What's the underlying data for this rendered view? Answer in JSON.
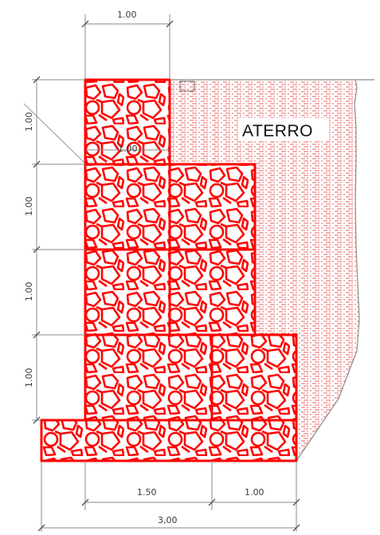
{
  "drawing": {
    "fill_label": "ATERRO",
    "dim_top_width": "1.00",
    "dim_level_1": "1.00",
    "dim_level_2": "1.00",
    "dim_level_3": "1.00",
    "dim_level_4": "1.00",
    "dim_inner": "1.00",
    "dim_bottom_left": "1.50",
    "dim_bottom_right": "1.00",
    "dim_total": "3,00"
  },
  "colors": {
    "gabion": "#ff0000",
    "dimension_line": "#8a8a8a",
    "text": "#333333",
    "fill_hatch": "#e84a4a"
  }
}
